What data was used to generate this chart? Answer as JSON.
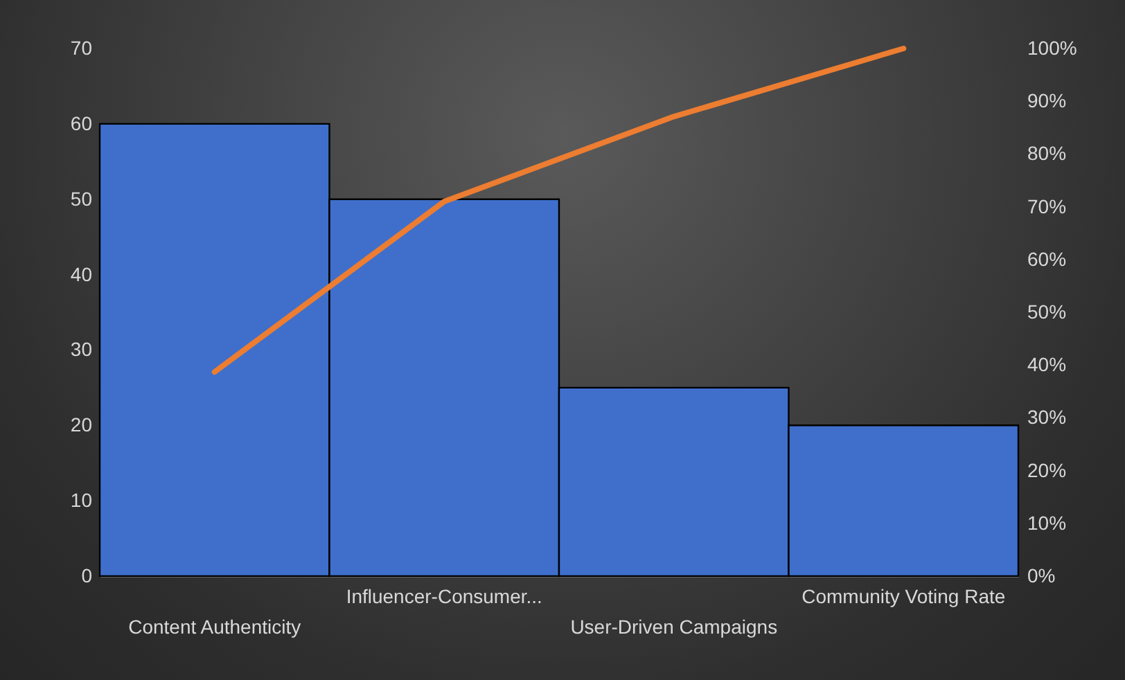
{
  "chart_data": {
    "type": "bar",
    "categories": [
      "Content Authenticity",
      "Influencer-Consumer...",
      "User-Driven Campaigns",
      "Community Voting Rate"
    ],
    "series": [
      {
        "color": "#3f6fcb",
        "values": [
          60,
          50,
          25,
          20
        ]
      },
      {
        "type": "line",
        "axis": "y2",
        "color": "#ed7d31",
        "values": [
          38.7,
          71,
          87.1,
          100
        ]
      }
    ],
    "ylim": [
      0,
      70
    ],
    "yticks": [
      0,
      10,
      20,
      30,
      40,
      50,
      60,
      70
    ],
    "y2lim": [
      0,
      100
    ],
    "y2ticks": [
      {
        "value": 0,
        "label": "0%"
      },
      {
        "value": 10,
        "label": "10%"
      },
      {
        "value": 20,
        "label": "20%"
      },
      {
        "value": 30,
        "label": "30%"
      },
      {
        "value": 40,
        "label": "40%"
      },
      {
        "value": 50,
        "label": "50%"
      },
      {
        "value": 60,
        "label": "60%"
      },
      {
        "value": 70,
        "label": "70%"
      },
      {
        "value": 80,
        "label": "80%"
      },
      {
        "value": 90,
        "label": "90%"
      },
      {
        "value": 100,
        "label": "100%"
      }
    ],
    "grid": false,
    "marker": "none",
    "line_style": "solid"
  }
}
